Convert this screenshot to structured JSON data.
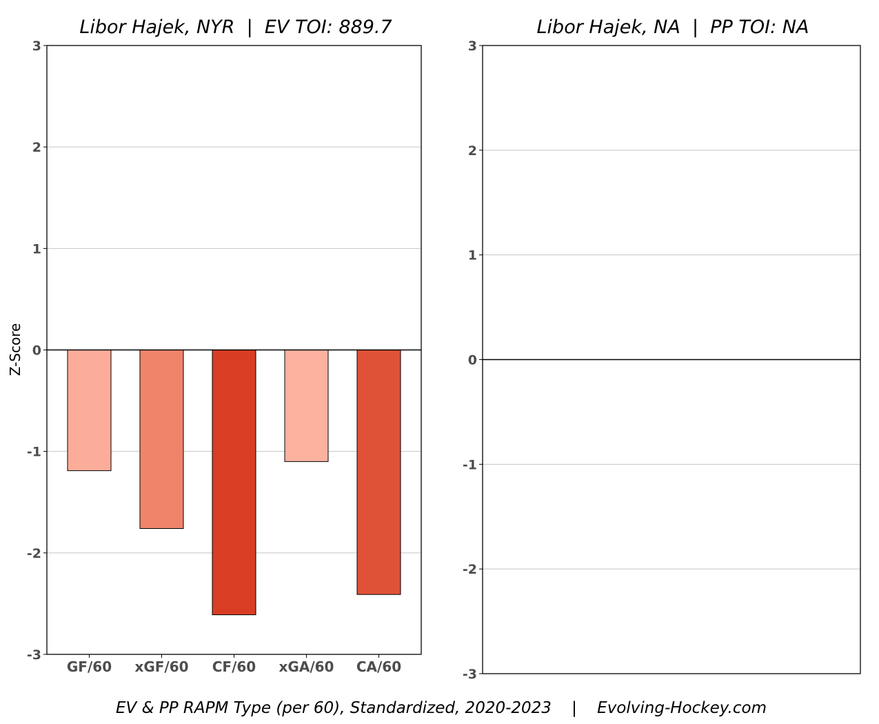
{
  "chart_data": [
    {
      "type": "bar",
      "title": "Libor Hajek, NYR  |  EV TOI: 889.7",
      "ylabel": "Z-Score",
      "xlabel": "",
      "ylim": [
        -3,
        3
      ],
      "yticks": [
        3,
        2,
        1,
        0,
        -1,
        -2,
        -3
      ],
      "grid": true,
      "categories": [
        "GF/60",
        "xGF/60",
        "CF/60",
        "xGA/60",
        "CA/60"
      ],
      "values": [
        -1.19,
        -1.76,
        -2.61,
        -1.1,
        -2.41
      ],
      "colors": [
        "#fcad9a",
        "#f0846b",
        "#d93e25",
        "#fcb29f",
        "#e05237"
      ]
    },
    {
      "type": "bar",
      "title": "Libor Hajek, NA  |  PP TOI: NA",
      "ylabel": "",
      "xlabel": "",
      "ylim": [
        -3,
        3
      ],
      "yticks": [
        3,
        2,
        1,
        0,
        -1,
        -2,
        -3
      ],
      "grid": true,
      "categories": [],
      "values": []
    }
  ],
  "footer": "EV & PP RAPM Type (per 60), Standardized, 2020-2023    |    Evolving-Hockey.com"
}
